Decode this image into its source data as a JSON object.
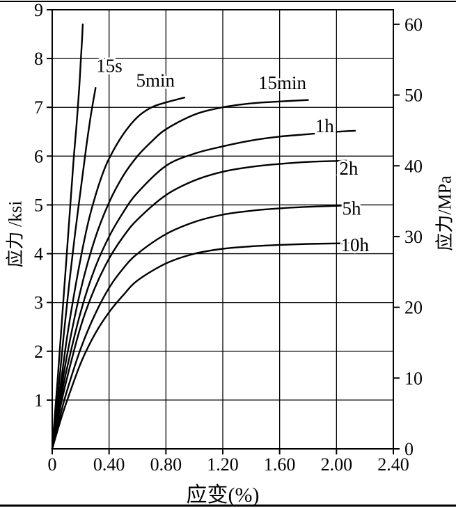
{
  "page": {
    "background": "#ffffff",
    "frame_color": "#000000"
  },
  "chart_data": {
    "type": "line",
    "title": "",
    "xlabel": "应变(%)",
    "ylabel_left": "应力 /ksi",
    "ylabel_right": "应力/MPa",
    "xlim": [
      0,
      2.4
    ],
    "ylim_left": [
      0,
      9
    ],
    "ylim_right": [
      0,
      60
    ],
    "mpa_per_ksi": 6.8948,
    "grid": true,
    "line_color": "#000000",
    "x_ticks": [
      {
        "value": 0.0,
        "label": "0"
      },
      {
        "value": 0.4,
        "label": "0.40"
      },
      {
        "value": 0.8,
        "label": "0.80"
      },
      {
        "value": 1.2,
        "label": "1.20"
      },
      {
        "value": 1.6,
        "label": "1.60"
      },
      {
        "value": 2.0,
        "label": "2.00"
      },
      {
        "value": 2.4,
        "label": "2.40"
      }
    ],
    "y_ticks_left": [
      {
        "value": 1,
        "label": "1"
      },
      {
        "value": 2,
        "label": "2"
      },
      {
        "value": 3,
        "label": "3"
      },
      {
        "value": 4,
        "label": "4"
      },
      {
        "value": 5,
        "label": "5"
      },
      {
        "value": 6,
        "label": "6"
      },
      {
        "value": 7,
        "label": "7"
      },
      {
        "value": 8,
        "label": "8"
      },
      {
        "value": 9,
        "label": "9"
      }
    ],
    "y_ticks_right": [
      {
        "value": 0,
        "label": "0"
      },
      {
        "value": 10,
        "label": "10"
      },
      {
        "value": 20,
        "label": "20"
      },
      {
        "value": 30,
        "label": "30"
      },
      {
        "value": 40,
        "label": "40"
      },
      {
        "value": 50,
        "label": "50"
      },
      {
        "value": 60,
        "label": "60"
      }
    ],
    "series": [
      {
        "name": "curve-steep-unlabeled",
        "label": "",
        "points": [
          [
            0,
            0
          ],
          [
            0.04,
            1.5
          ],
          [
            0.08,
            3.1
          ],
          [
            0.12,
            4.7
          ],
          [
            0.15,
            5.9
          ],
          [
            0.17,
            6.6
          ],
          [
            0.19,
            7.4
          ],
          [
            0.2,
            7.9
          ],
          [
            0.21,
            8.4
          ],
          [
            0.215,
            8.7
          ]
        ]
      },
      {
        "name": "curve-15s",
        "label": "15s",
        "points": [
          [
            0,
            0
          ],
          [
            0.04,
            1.1
          ],
          [
            0.08,
            2.3
          ],
          [
            0.12,
            3.4
          ],
          [
            0.16,
            4.4
          ],
          [
            0.2,
            5.3
          ],
          [
            0.24,
            6.2
          ],
          [
            0.27,
            6.8
          ],
          [
            0.29,
            7.15
          ],
          [
            0.305,
            7.4
          ]
        ]
      },
      {
        "name": "curve-5min",
        "label": "5min",
        "points": [
          [
            0,
            0
          ],
          [
            0.05,
            1.1
          ],
          [
            0.1,
            2.2
          ],
          [
            0.15,
            3.1
          ],
          [
            0.2,
            3.9
          ],
          [
            0.25,
            4.6
          ],
          [
            0.3,
            5.15
          ],
          [
            0.35,
            5.6
          ],
          [
            0.4,
            5.95
          ],
          [
            0.5,
            6.45
          ],
          [
            0.6,
            6.8
          ],
          [
            0.7,
            7.0
          ],
          [
            0.8,
            7.1
          ],
          [
            0.93,
            7.2
          ]
        ]
      },
      {
        "name": "curve-15min",
        "label": "15min",
        "points": [
          [
            0,
            0
          ],
          [
            0.05,
            0.95
          ],
          [
            0.1,
            1.85
          ],
          [
            0.2,
            3.25
          ],
          [
            0.3,
            4.3
          ],
          [
            0.4,
            5.05
          ],
          [
            0.5,
            5.6
          ],
          [
            0.6,
            6.0
          ],
          [
            0.7,
            6.3
          ],
          [
            0.8,
            6.55
          ],
          [
            1.0,
            6.85
          ],
          [
            1.2,
            7.0
          ],
          [
            1.4,
            7.08
          ],
          [
            1.6,
            7.12
          ],
          [
            1.8,
            7.15
          ]
        ]
      },
      {
        "name": "curve-1h",
        "label": "1h",
        "points": [
          [
            0,
            0
          ],
          [
            0.05,
            0.85
          ],
          [
            0.1,
            1.6
          ],
          [
            0.2,
            2.8
          ],
          [
            0.3,
            3.7
          ],
          [
            0.4,
            4.35
          ],
          [
            0.5,
            4.85
          ],
          [
            0.6,
            5.25
          ],
          [
            0.8,
            5.8
          ],
          [
            1.0,
            6.05
          ],
          [
            1.2,
            6.2
          ],
          [
            1.4,
            6.32
          ],
          [
            1.6,
            6.4
          ],
          [
            1.8,
            6.45
          ],
          [
            2.0,
            6.5
          ],
          [
            2.13,
            6.52
          ]
        ]
      },
      {
        "name": "curve-2h",
        "label": "2h",
        "points": [
          [
            0,
            0
          ],
          [
            0.05,
            0.75
          ],
          [
            0.1,
            1.4
          ],
          [
            0.2,
            2.5
          ],
          [
            0.3,
            3.3
          ],
          [
            0.4,
            3.9
          ],
          [
            0.5,
            4.35
          ],
          [
            0.6,
            4.7
          ],
          [
            0.8,
            5.2
          ],
          [
            1.0,
            5.5
          ],
          [
            1.2,
            5.68
          ],
          [
            1.4,
            5.78
          ],
          [
            1.6,
            5.84
          ],
          [
            1.8,
            5.88
          ],
          [
            2.0,
            5.9
          ],
          [
            2.1,
            5.91
          ]
        ]
      },
      {
        "name": "curve-5h",
        "label": "5h",
        "points": [
          [
            0,
            0
          ],
          [
            0.05,
            0.6
          ],
          [
            0.1,
            1.15
          ],
          [
            0.2,
            2.05
          ],
          [
            0.3,
            2.75
          ],
          [
            0.4,
            3.3
          ],
          [
            0.5,
            3.7
          ],
          [
            0.6,
            4.0
          ],
          [
            0.8,
            4.4
          ],
          [
            1.0,
            4.65
          ],
          [
            1.2,
            4.8
          ],
          [
            1.4,
            4.88
          ],
          [
            1.6,
            4.93
          ],
          [
            1.8,
            4.96
          ],
          [
            2.0,
            4.98
          ],
          [
            2.12,
            5.0
          ]
        ]
      },
      {
        "name": "curve-10h",
        "label": "10h",
        "points": [
          [
            0,
            0
          ],
          [
            0.05,
            0.5
          ],
          [
            0.1,
            0.95
          ],
          [
            0.2,
            1.75
          ],
          [
            0.3,
            2.35
          ],
          [
            0.4,
            2.8
          ],
          [
            0.5,
            3.15
          ],
          [
            0.6,
            3.45
          ],
          [
            0.8,
            3.8
          ],
          [
            1.0,
            4.0
          ],
          [
            1.2,
            4.1
          ],
          [
            1.4,
            4.15
          ],
          [
            1.6,
            4.18
          ],
          [
            1.8,
            4.2
          ],
          [
            2.0,
            4.21
          ],
          [
            2.15,
            4.22
          ]
        ]
      }
    ],
    "annotations": [
      {
        "text": "15s",
        "x": 0.31,
        "y": 7.85
      },
      {
        "text": "5min",
        "x": 0.59,
        "y": 7.55
      },
      {
        "text": "15min",
        "x": 1.45,
        "y": 7.5
      },
      {
        "text": "1h",
        "x": 1.85,
        "y": 6.62
      },
      {
        "text": "2h",
        "x": 2.02,
        "y": 5.75
      },
      {
        "text": "5h",
        "x": 2.04,
        "y": 4.93
      },
      {
        "text": "10h",
        "x": 2.03,
        "y": 4.18
      }
    ]
  }
}
